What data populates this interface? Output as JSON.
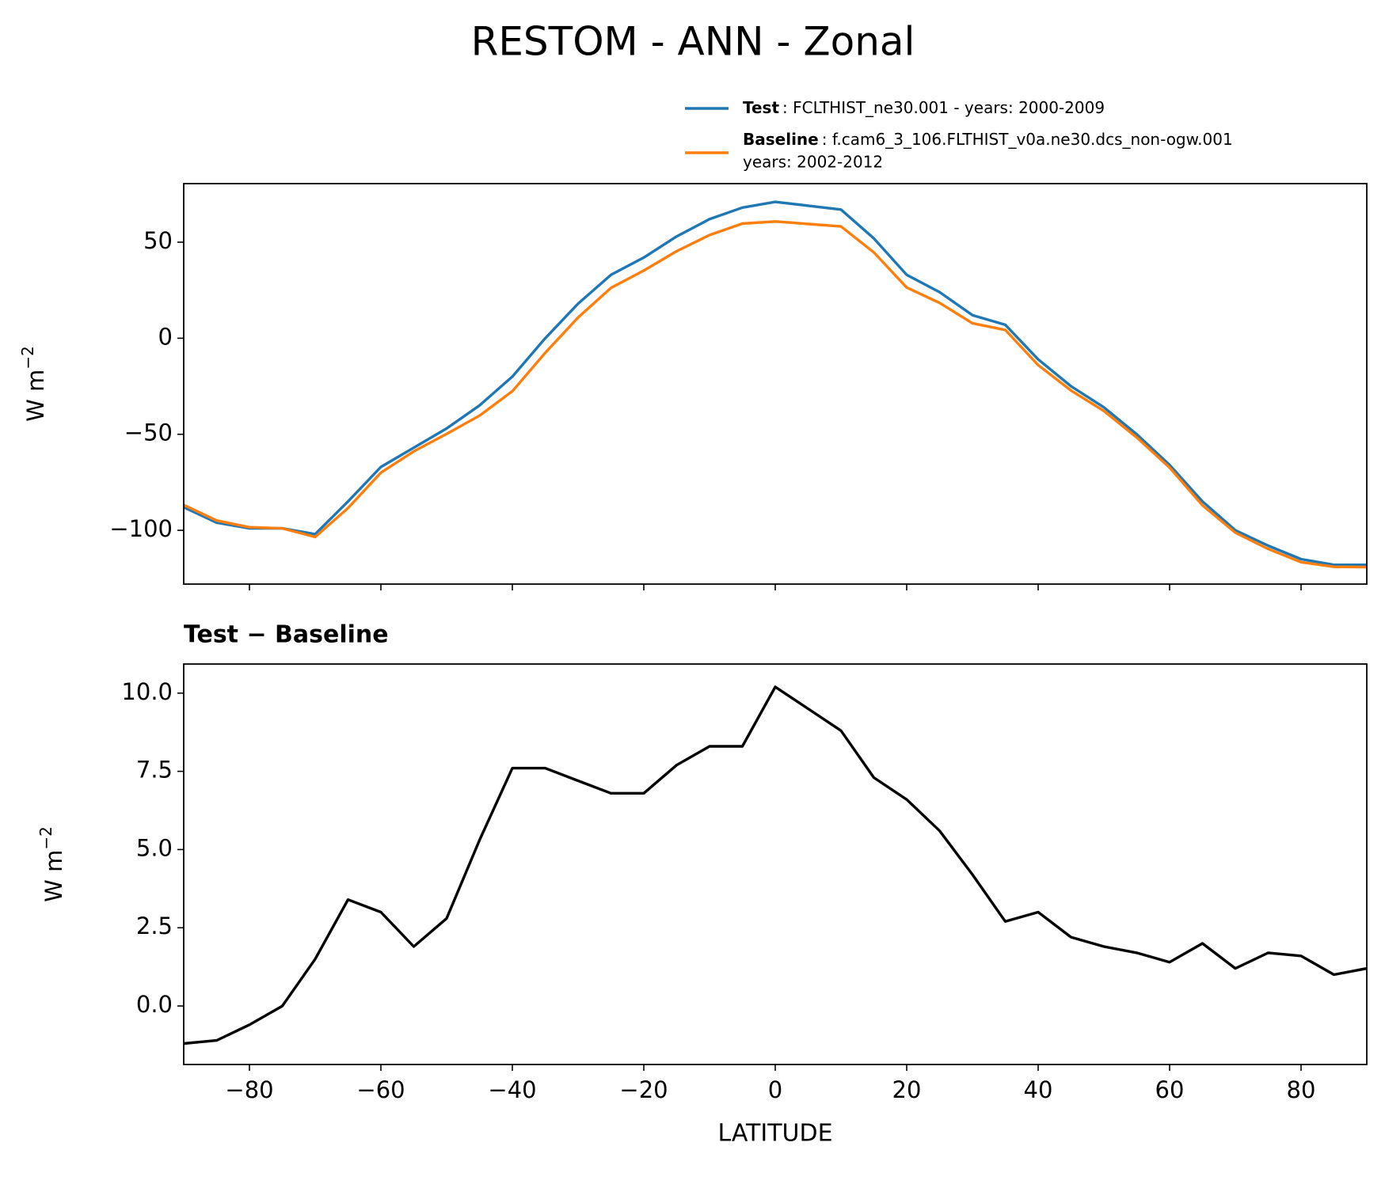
{
  "title": "RESTOM - ANN - Zonal",
  "chart_data": [
    {
      "type": "line",
      "ylabel": "W m",
      "ylabel_superscript": "−2",
      "x": [
        -90,
        -85,
        -80,
        -75,
        -70,
        -65,
        -60,
        -55,
        -50,
        -45,
        -40,
        -35,
        -30,
        -25,
        -20,
        -15,
        -10,
        -5,
        0,
        5,
        10,
        15,
        20,
        25,
        30,
        35,
        40,
        45,
        50,
        55,
        60,
        65,
        70,
        75,
        80,
        85,
        90
      ],
      "series": [
        {
          "name": "Test",
          "description": ": FCLTHIST_ne30.001 - years: 2000-2009",
          "color": "#1f77b4",
          "values": [
            -88,
            -96,
            -99,
            -99,
            -102,
            -85,
            -67,
            -57,
            -47,
            -35,
            -20,
            0,
            18,
            33,
            42,
            53,
            62,
            68,
            71,
            69,
            67,
            52,
            33,
            24,
            12,
            7,
            -11,
            -25,
            -36,
            -50,
            -66,
            -85,
            -100,
            -108,
            -115,
            -118,
            -118
          ]
        },
        {
          "name": "Baseline",
          "description": ": f.cam6_3_106.FLTHIST_v0a.ne30.dcs_non-ogw.001",
          "description_2": "years: 2002-2012",
          "color": "#ff7f0e",
          "values": [
            -86.8,
            -94.9,
            -98.4,
            -99,
            -103.5,
            -88.4,
            -70,
            -58.9,
            -49.8,
            -40.3,
            -27.6,
            -7.6,
            10.8,
            26.2,
            35.2,
            45.3,
            53.7,
            59.7,
            60.8,
            59.5,
            58.2,
            44.7,
            26.4,
            18.4,
            7.8,
            4.3,
            -14,
            -27.2,
            -37.9,
            -51.7,
            -67.4,
            -87,
            -101.2,
            -109.7,
            -116.6,
            -119,
            -119.2
          ]
        }
      ],
      "xlim": [
        -90,
        90
      ],
      "xticks": [
        -80,
        -60,
        -40,
        -20,
        0,
        20,
        40,
        60,
        80
      ],
      "ylim": [
        -128,
        80.5
      ],
      "yticks": [
        {
          "value": -100,
          "label": "−100"
        },
        {
          "value": -50,
          "label": "−50"
        },
        0,
        50
      ]
    },
    {
      "type": "line",
      "title": "Test − Baseline",
      "xlabel": "LATITUDE",
      "ylabel": "W m",
      "ylabel_superscript": "−2",
      "x": [
        -90,
        -85,
        -80,
        -75,
        -70,
        -65,
        -60,
        -55,
        -50,
        -45,
        -40,
        -35,
        -30,
        -25,
        -20,
        -15,
        -10,
        -5,
        0,
        5,
        10,
        15,
        20,
        25,
        30,
        35,
        40,
        45,
        50,
        55,
        60,
        65,
        70,
        75,
        80,
        85,
        90
      ],
      "series": [
        {
          "color": "#000000",
          "values": [
            -1.2,
            -1.1,
            -0.6,
            0.0,
            1.5,
            3.4,
            3.0,
            1.9,
            2.8,
            5.3,
            7.6,
            7.6,
            7.2,
            6.8,
            6.8,
            7.7,
            8.3,
            8.3,
            10.2,
            9.5,
            8.8,
            7.3,
            6.6,
            5.6,
            4.2,
            2.7,
            3.0,
            2.2,
            1.9,
            1.7,
            1.4,
            2.0,
            1.2,
            1.7,
            1.6,
            1.0,
            1.2
          ]
        }
      ],
      "xlim": [
        -90,
        90
      ],
      "xticks": [
        {
          "value": -80,
          "label": "−80"
        },
        {
          "value": -60,
          "label": "−60"
        },
        {
          "value": -40,
          "label": "−40"
        },
        {
          "value": -20,
          "label": "−20"
        },
        0,
        20,
        40,
        60,
        80
      ],
      "ylim": [
        -1.87,
        10.93
      ],
      "yticks": [
        {
          "value": 0,
          "label": "0.0"
        },
        2.5,
        {
          "value": 5,
          "label": "5.0"
        },
        7.5,
        {
          "value": 10,
          "label": "10.0"
        }
      ]
    }
  ]
}
